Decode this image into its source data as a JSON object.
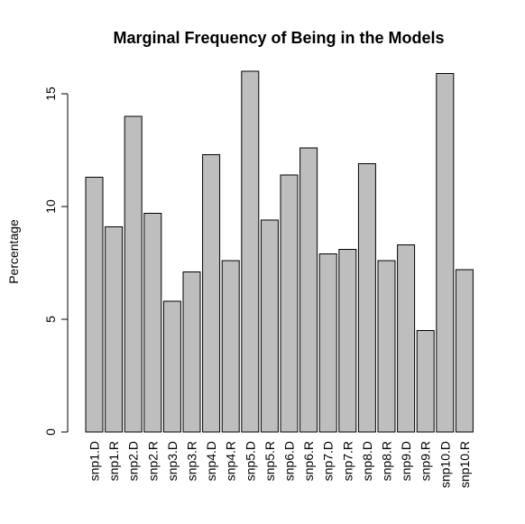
{
  "chart_data": {
    "type": "bar",
    "title": "Marginal Frequency of Being in the Models",
    "xlabel": "",
    "ylabel": "Percentage",
    "categories": [
      "snp1.D",
      "snp1.R",
      "snp2.D",
      "snp2.R",
      "snp3.D",
      "snp3.R",
      "snp4.D",
      "snp4.R",
      "snp5.D",
      "snp5.R",
      "snp6.D",
      "snp6.R",
      "snp7.D",
      "snp7.R",
      "snp8.D",
      "snp8.R",
      "snp9.D",
      "snp9.R",
      "snp10.D",
      "snp10.R"
    ],
    "values": [
      11.3,
      9.1,
      14.0,
      9.7,
      5.8,
      7.1,
      12.3,
      7.6,
      16.0,
      9.4,
      11.4,
      12.6,
      7.9,
      8.1,
      11.9,
      7.6,
      8.3,
      4.5,
      15.9,
      7.2
    ],
    "yticks": [
      0,
      5,
      10,
      15
    ],
    "ylim": [
      0,
      16
    ],
    "grid": false,
    "bar_color": "#bebebe",
    "border_color": "#000000"
  }
}
